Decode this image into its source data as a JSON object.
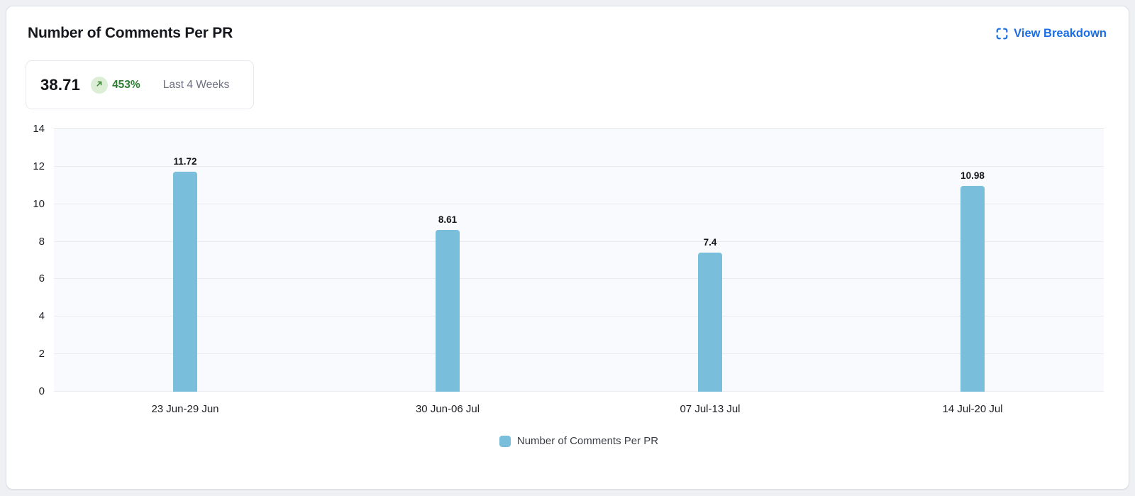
{
  "header": {
    "title": "Number of Comments Per PR",
    "view_breakdown_label": "View Breakdown"
  },
  "summary": {
    "value": "38.71",
    "change": "453%",
    "trend_direction": "up",
    "period": "Last 4 Weeks"
  },
  "colors": {
    "bar": "#79bedb",
    "link_blue": "#1a6ee5",
    "trend_green": "#2e7d32",
    "trend_badge_bg": "#dcefd6",
    "plot_bg": "#f9fafd"
  },
  "icons": {
    "view_breakdown": "expand-icon",
    "trend": "arrow-up-right-icon"
  },
  "chart_data": {
    "type": "bar",
    "categories": [
      "23 Jun-29 Jun",
      "30 Jun-06 Jul",
      "07 Jul-13 Jul",
      "14 Jul-20 Jul"
    ],
    "values": [
      11.72,
      8.61,
      7.4,
      10.98
    ],
    "value_labels": [
      "11.72",
      "8.61",
      "7.4",
      "10.98"
    ],
    "title": "Number of Comments Per PR",
    "xlabel": "",
    "ylabel": "",
    "ylim": [
      0,
      14
    ],
    "yticks": [
      0,
      2,
      4,
      6,
      8,
      10,
      12,
      14
    ],
    "grid": true,
    "legend": "Number of Comments Per PR",
    "legend_position": "bottom"
  }
}
